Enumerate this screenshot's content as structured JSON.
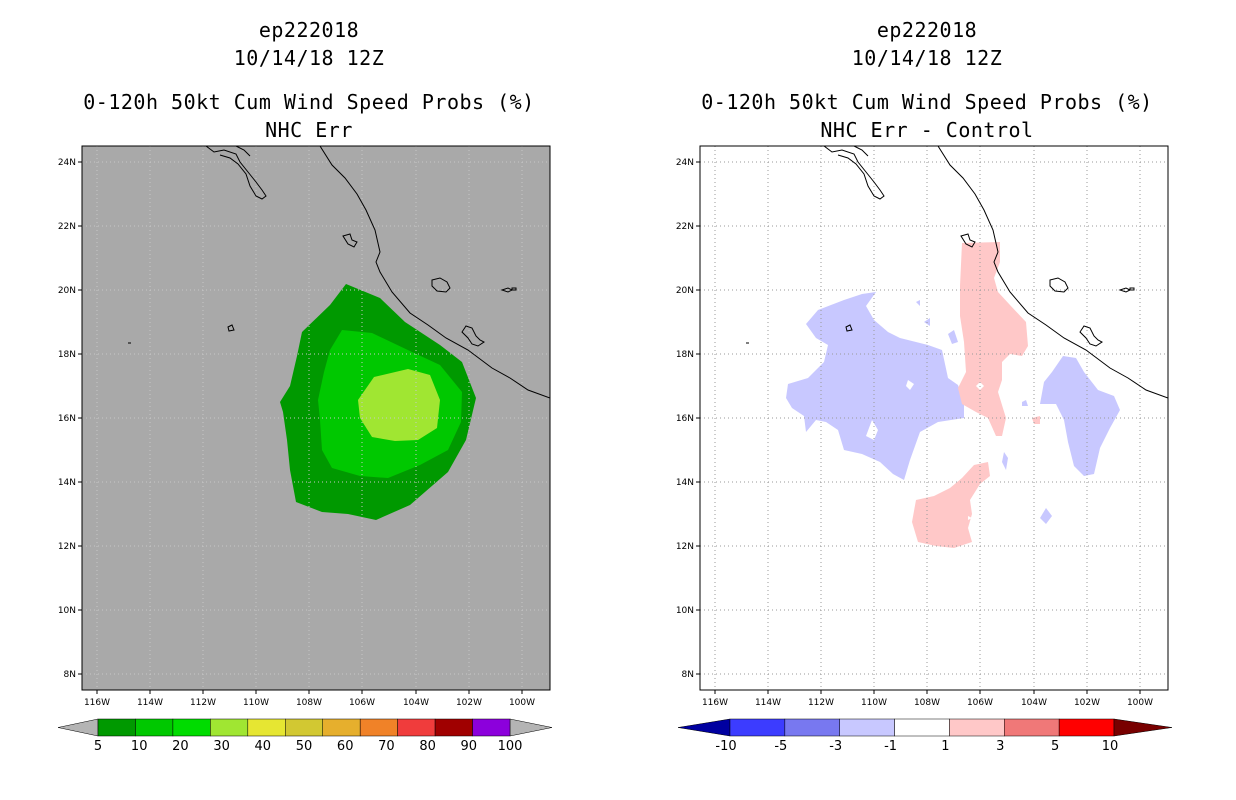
{
  "left": {
    "title1": "ep222018",
    "title2": "10/14/18 12Z",
    "title3": "0-120h 50kt Cum Wind Speed Probs (%)",
    "title4": "NHC Err",
    "background_color": "#a9a9a9",
    "lat_labels": [
      "24N",
      "22N",
      "20N",
      "18N",
      "16N",
      "14N",
      "12N",
      "10N",
      "8N"
    ],
    "lon_labels": [
      "116W",
      "114W",
      "112W",
      "110W",
      "108W",
      "106W",
      "104W",
      "102W",
      "100W"
    ],
    "colorbar": {
      "colors": [
        "#009900",
        "#00c800",
        "#00dc00",
        "#a0e632",
        "#e6e632",
        "#d2c832",
        "#e6af2d",
        "#f08228",
        "#f03c3c",
        "#a00000",
        "#8c00dc"
      ],
      "labels": [
        "5",
        "10",
        "20",
        "30",
        "40",
        "50",
        "60",
        "70",
        "80",
        "90",
        "100"
      ],
      "end_color": "#b4b4b4"
    },
    "contours": [
      {
        "level": "5-10%",
        "color": "#009900"
      },
      {
        "level": "10-20%",
        "color": "#00c800"
      },
      {
        "level": "20-30%",
        "color": "#a0e632"
      }
    ]
  },
  "right": {
    "title1": "ep222018",
    "title2": "10/14/18 12Z",
    "title3": "0-120h 50kt Cum Wind Speed Probs (%)",
    "title4": "NHC Err - Control",
    "background_color": "#ffffff",
    "lat_labels": [
      "24N",
      "22N",
      "20N",
      "18N",
      "16N",
      "14N",
      "12N",
      "10N",
      "8N"
    ],
    "lon_labels": [
      "116W",
      "114W",
      "112W",
      "110W",
      "108W",
      "106W",
      "104W",
      "102W",
      "100W"
    ],
    "colorbar": {
      "colors": [
        "#0000c8",
        "#3c3cff",
        "#7878f0",
        "#c8c8ff",
        "#ffffff",
        "#ffc8c8",
        "#f07878",
        "#ff0000",
        "#780000"
      ],
      "labels": [
        "-10",
        "-5",
        "-3",
        "-1",
        "1",
        "3",
        "5",
        "10"
      ],
      "left_end_color": "#0000a0",
      "right_end_color": "#780000"
    },
    "contours": [
      {
        "level": "-3 to -1",
        "color": "#c8c8ff"
      },
      {
        "level": "1 to 3",
        "color": "#ffc8c8"
      }
    ]
  }
}
